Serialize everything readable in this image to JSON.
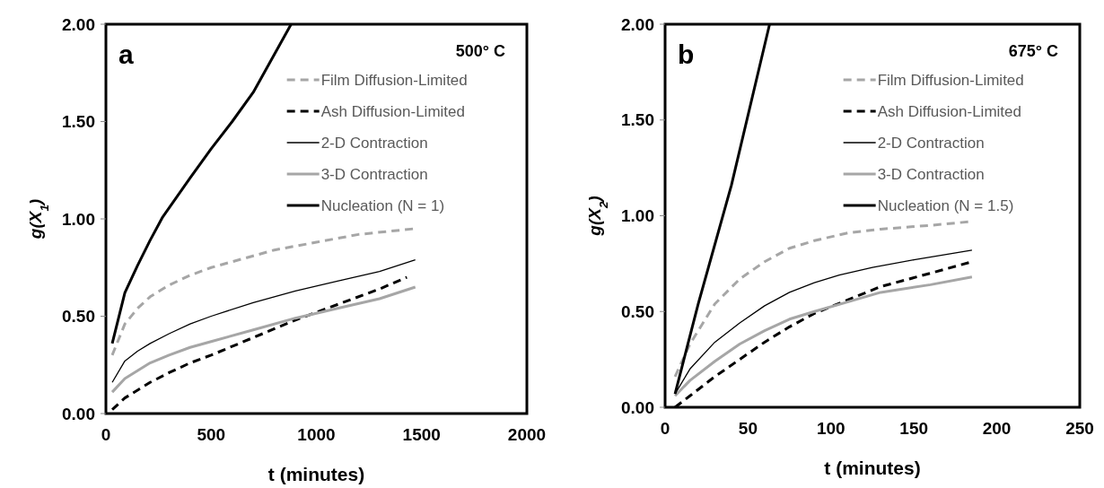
{
  "chart_data": [
    {
      "type": "line",
      "annotations": [
        "a",
        "500° C"
      ],
      "xlabel": "t (minutes)",
      "ylabel": "g(X$_{1}$)",
      "xlim": [
        0,
        2000
      ],
      "xticks": [
        0,
        500,
        1000,
        1500,
        2000
      ],
      "ylim": [
        0,
        2
      ],
      "yticks": [
        {
          "value": 0,
          "label": "0.00"
        },
        {
          "value": 0.5,
          "label": "0.50"
        },
        {
          "value": 1,
          "label": "1.00"
        },
        {
          "value": 1.5,
          "label": "1.50"
        },
        {
          "value": 2,
          "label": "2.00"
        }
      ],
      "grid": false,
      "legend": "top right",
      "series": [
        {
          "name": "Film Diffusion-Limited",
          "color": "#a6a6a6",
          "line_style": "dashed",
          "x": [
            30,
            90,
            150,
            210,
            300,
            400,
            500,
            600,
            700,
            800,
            1000,
            1200,
            1470
          ],
          "values": [
            0.3,
            0.46,
            0.54,
            0.6,
            0.66,
            0.71,
            0.75,
            0.78,
            0.81,
            0.84,
            0.88,
            0.92,
            0.95
          ]
        },
        {
          "name": "Ash Diffusion-Limited",
          "color": "#000000",
          "line_style": "dashed",
          "x": [
            30,
            90,
            210,
            300,
            400,
            500,
            700,
            900,
            1100,
            1300,
            1430
          ],
          "values": [
            0.02,
            0.08,
            0.16,
            0.21,
            0.26,
            0.3,
            0.39,
            0.48,
            0.56,
            0.64,
            0.7
          ]
        },
        {
          "name": "2-D Contraction",
          "color": "#000000",
          "line_style": "solid",
          "x": [
            30,
            90,
            150,
            210,
            300,
            400,
            500,
            700,
            900,
            1100,
            1300,
            1470
          ],
          "values": [
            0.16,
            0.27,
            0.32,
            0.36,
            0.41,
            0.46,
            0.5,
            0.57,
            0.63,
            0.68,
            0.73,
            0.79
          ]
        },
        {
          "name": "3-D Contraction",
          "color": "#a6a6a6",
          "line_style": "solid",
          "x": [
            30,
            90,
            210,
            300,
            400,
            500,
            700,
            900,
            1100,
            1300,
            1470
          ],
          "values": [
            0.11,
            0.18,
            0.26,
            0.3,
            0.34,
            0.37,
            0.43,
            0.49,
            0.54,
            0.59,
            0.65
          ]
        },
        {
          "name": "Nucleation (N = 1)",
          "color": "#000000",
          "line_style": "solid",
          "x": [
            30,
            90,
            150,
            210,
            270,
            400,
            500,
            600,
            700,
            880
          ],
          "values": [
            0.36,
            0.62,
            0.76,
            0.89,
            1.01,
            1.21,
            1.36,
            1.5,
            1.65,
            2.0
          ]
        }
      ]
    },
    {
      "type": "line",
      "annotations": [
        "b",
        "675° C"
      ],
      "xlabel": "t (minutes)",
      "ylabel": "g(X$_{2}$)",
      "xlim": [
        0,
        250
      ],
      "xticks": [
        0,
        50,
        100,
        150,
        200,
        250
      ],
      "ylim": [
        0,
        2
      ],
      "yticks": [
        {
          "value": 0,
          "label": "0.00"
        },
        {
          "value": 0.5,
          "label": "0.50"
        },
        {
          "value": 1,
          "label": "1.00"
        },
        {
          "value": 1.5,
          "label": "1.50"
        },
        {
          "value": 2,
          "label": "2.00"
        }
      ],
      "grid": false,
      "legend": "top right",
      "series": [
        {
          "name": "Film Diffusion-Limited",
          "color": "#a6a6a6",
          "line_style": "dashed",
          "x": [
            6,
            15,
            30,
            45,
            60,
            75,
            90,
            110,
            130,
            160,
            185
          ],
          "values": [
            0.16,
            0.33,
            0.54,
            0.67,
            0.76,
            0.83,
            0.87,
            0.91,
            0.93,
            0.95,
            0.97
          ]
        },
        {
          "name": "Ash Diffusion-Limited",
          "color": "#000000",
          "line_style": "dashed",
          "x": [
            6,
            15,
            30,
            45,
            60,
            75,
            90,
            110,
            130,
            160,
            185
          ],
          "values": [
            0.0,
            0.06,
            0.16,
            0.25,
            0.34,
            0.42,
            0.49,
            0.56,
            0.63,
            0.7,
            0.76
          ]
        },
        {
          "name": "2-D Contraction",
          "color": "#000000",
          "line_style": "solid",
          "x": [
            6,
            15,
            30,
            45,
            60,
            75,
            90,
            105,
            125,
            150,
            185
          ],
          "values": [
            0.07,
            0.2,
            0.34,
            0.44,
            0.53,
            0.6,
            0.65,
            0.69,
            0.73,
            0.77,
            0.82
          ]
        },
        {
          "name": "3-D Contraction",
          "color": "#a6a6a6",
          "line_style": "solid",
          "x": [
            6,
            15,
            30,
            45,
            60,
            75,
            90,
            110,
            130,
            160,
            185
          ],
          "values": [
            0.06,
            0.14,
            0.24,
            0.33,
            0.4,
            0.46,
            0.5,
            0.55,
            0.6,
            0.64,
            0.68
          ]
        },
        {
          "name": "Nucleation (N = 1.5)",
          "color": "#000000",
          "line_style": "solid",
          "x": [
            6,
            20,
            40,
            63
          ],
          "values": [
            0.07,
            0.54,
            1.16,
            2.0
          ]
        }
      ]
    }
  ]
}
